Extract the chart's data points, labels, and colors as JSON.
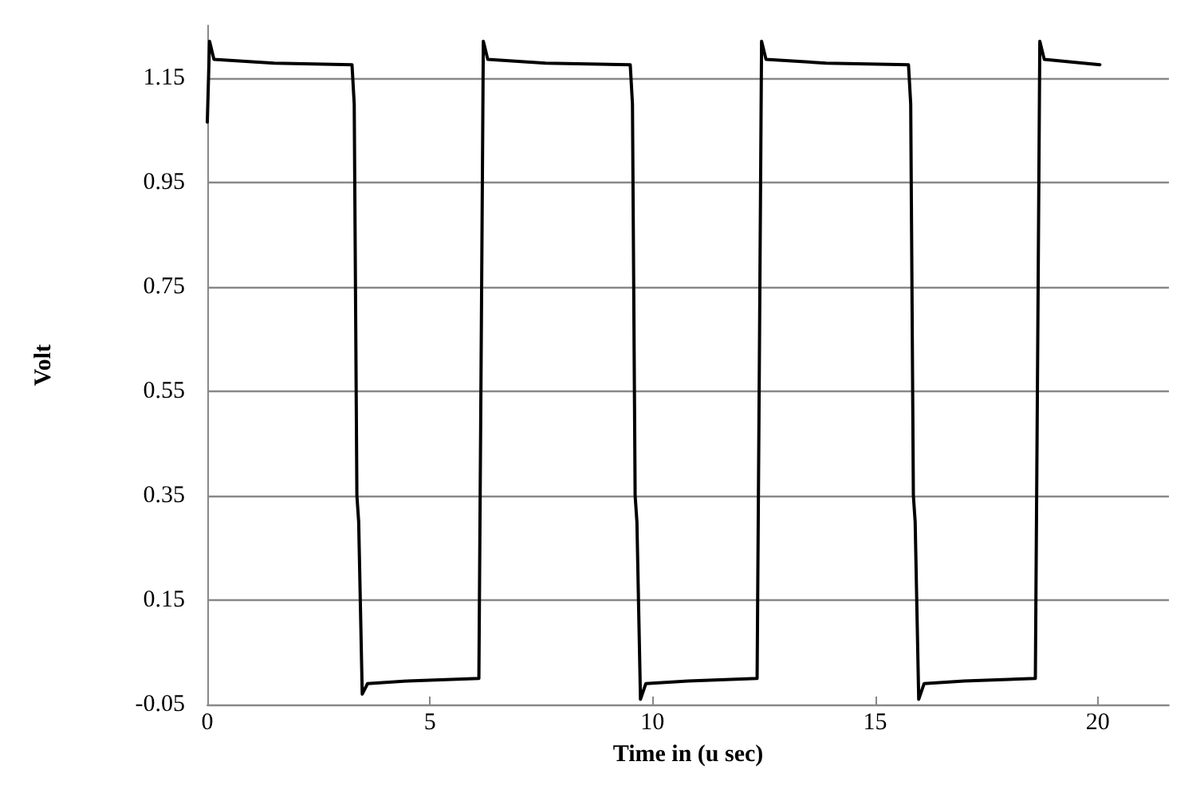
{
  "chart_data": {
    "type": "line",
    "xlabel": "Time in (u sec)",
    "ylabel": "Volt",
    "x": [
      0,
      0.05,
      0.15,
      1.5,
      3.25,
      3.3,
      3.36,
      3.4,
      3.48,
      3.6,
      4.5,
      6.1,
      6.15,
      6.2,
      6.3,
      7.6,
      9.5,
      9.55,
      9.61,
      9.65,
      9.73,
      9.85,
      10.8,
      12.35,
      12.4,
      12.45,
      12.55,
      13.9,
      15.75,
      15.8,
      15.86,
      15.9,
      15.98,
      16.1,
      17,
      18.6,
      18.65,
      18.7,
      18.8,
      20.05
    ],
    "series": [
      {
        "color": "#000000",
        "values": [
          1.065,
          1.22,
          1.185,
          1.178,
          1.175,
          1.1,
          0.35,
          0.3,
          -0.03,
          -0.01,
          -0.005,
          0.0,
          0.6,
          1.22,
          1.185,
          1.178,
          1.175,
          1.1,
          0.35,
          0.3,
          -0.04,
          -0.01,
          -0.005,
          0.0,
          0.6,
          1.22,
          1.185,
          1.178,
          1.175,
          1.1,
          0.35,
          0.3,
          -0.04,
          -0.01,
          -0.005,
          0.0,
          0.6,
          1.22,
          1.185,
          1.175
        ]
      }
    ],
    "xlim": [
      0,
      21.6
    ],
    "xticks": [
      0,
      5,
      10,
      15,
      20
    ],
    "ylim": [
      -0.05,
      1.25
    ],
    "yticks": [
      -0.05,
      0.15,
      0.35,
      0.55,
      0.75,
      0.95,
      1.15
    ],
    "grid": "y",
    "marker": "none",
    "line_style": "solid"
  }
}
